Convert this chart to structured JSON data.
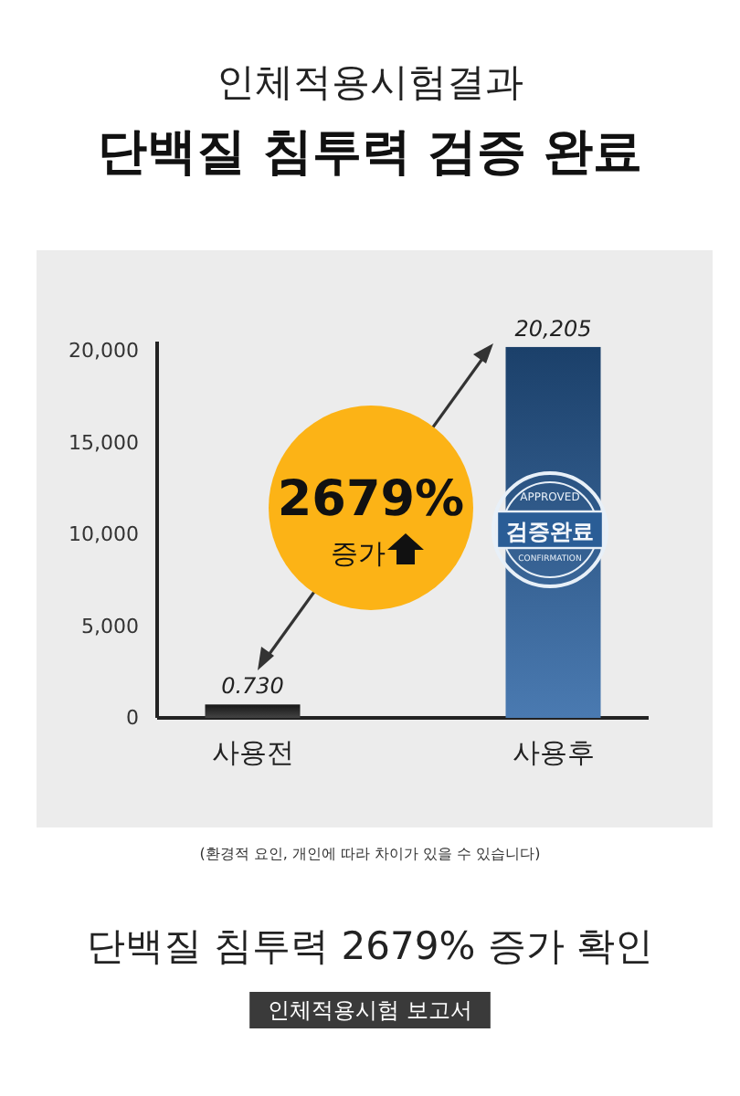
{
  "chart_data": {
    "type": "bar",
    "subtitle": "인체적용시험결과",
    "title": "단백질 침투력 검증 완료",
    "categories": [
      "사용전",
      "사용후"
    ],
    "values": [
      730,
      20205
    ],
    "value_labels": [
      null,
      "20,205"
    ],
    "colors": [
      "#222222",
      "#2a63a3"
    ],
    "ylim": [
      0,
      20500
    ],
    "yticks": [
      {
        "value": 0,
        "label": "0"
      },
      {
        "value": 5000,
        "label": "5,000"
      },
      {
        "value": 10000,
        "label": "10,000"
      },
      {
        "value": 15000,
        "label": "15,000"
      },
      {
        "value": 20000,
        "label": "20,000"
      }
    ],
    "grid": false,
    "annotations": [
      "2679%",
      "증가",
      "APPROVED",
      "검증완료",
      "CONFIRMATION",
      "(환경적 요인, 개인에 따라 차이가 있을 수 있습니다)",
      "단백질 침투력 2679% 증가 확인",
      "인체적용시험 보고서",
      {
        "text": "0.730",
        "x": "사용전",
        "y": 730
      }
    ]
  }
}
